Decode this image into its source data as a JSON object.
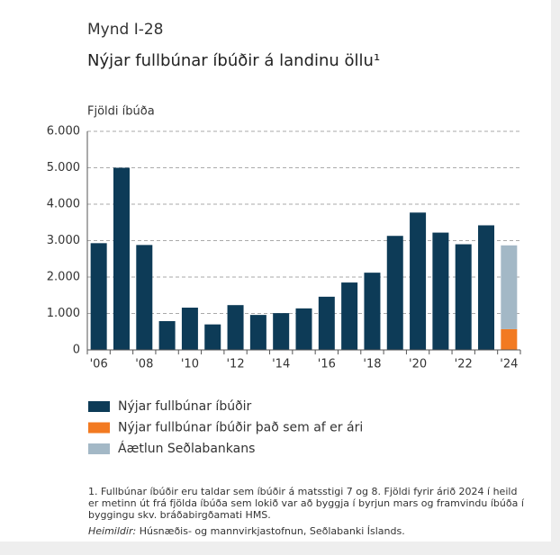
{
  "chart_data": {
    "type": "bar",
    "figure_label": "Mynd I-28",
    "title": "Nýjar fullbúnar íbúðir á landinu öllu¹",
    "y_axis_label": "Fjöldi íbúða",
    "categories": [
      "'06",
      null,
      "'08",
      null,
      "'10",
      null,
      "'12",
      null,
      "'14",
      null,
      "'16",
      null,
      "'18",
      null,
      "'20",
      null,
      "'22",
      null,
      "'24"
    ],
    "series": [
      {
        "name": "Nýjar fullbúnar íbúðir",
        "color": "#0d3b57",
        "values": [
          2930,
          5000,
          2880,
          790,
          1160,
          700,
          1230,
          960,
          1010,
          1140,
          1460,
          1850,
          2120,
          3130,
          3770,
          3220,
          2900,
          3420,
          null
        ]
      },
      {
        "name": "Nýjar fullbúnar íbúðir það sem af er ári",
        "color": "#f27a21",
        "values": [
          null,
          null,
          null,
          null,
          null,
          null,
          null,
          null,
          null,
          null,
          null,
          null,
          null,
          null,
          null,
          null,
          null,
          null,
          570
        ]
      },
      {
        "name": "Áætlun Seðlabankans",
        "color": "#a3b8c6",
        "values": [
          null,
          null,
          null,
          null,
          null,
          null,
          null,
          null,
          null,
          null,
          null,
          null,
          null,
          null,
          null,
          null,
          null,
          null,
          2300
        ]
      }
    ],
    "stacked": true,
    "ylim": [
      0,
      6000
    ],
    "yticks": [
      0,
      {
        "value": 1000,
        "label": "1.000"
      },
      {
        "value": 2000,
        "label": "2.000"
      },
      {
        "value": 3000,
        "label": "3.000"
      },
      {
        "value": 4000,
        "label": "4.000"
      },
      {
        "value": 5000,
        "label": "5.000"
      },
      {
        "value": 6000,
        "label": "6.000"
      }
    ],
    "grid": true,
    "footnote": "1. Fullbúnar íbúðir eru taldar sem íbúðir á matsstigi 7 og 8. Fjöldi fyrir árið 2024 í heild er metinn út frá fjölda íbúða sem lokið var að byggja í byrjun mars og framvindu íbúða í byggingu skv. bráðabirgðamati HMS.",
    "source_label": "Heimildir:",
    "source": "Húsnæðis- og mannvirkjastofnun, Seðlabanki Íslands."
  }
}
